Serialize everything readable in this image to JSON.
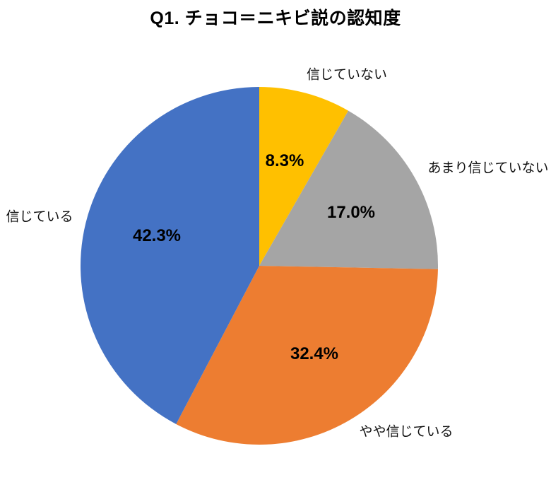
{
  "title": "Q1. チョコ＝ニキビ説の認知度",
  "chart_data": {
    "type": "pie",
    "title": "Q1. チョコ＝ニキビ説の認知度",
    "unit": "%",
    "start_angle_deg": 0,
    "direction": "clockwise",
    "legend": "none",
    "background_color": "#FFFFFF",
    "slices": [
      {
        "label": "信じていない",
        "value": 8.3,
        "pct_text": "8.3%",
        "color": "#FFC000"
      },
      {
        "label": "あまり信じていない",
        "value": 17.0,
        "pct_text": "17.0%",
        "color": "#A5A5A5"
      },
      {
        "label": "やや信じている",
        "value": 32.4,
        "pct_text": "32.4%",
        "color": "#ED7D31"
      },
      {
        "label": "信じている",
        "value": 42.3,
        "pct_text": "42.3%",
        "color": "#4472C4"
      }
    ]
  }
}
